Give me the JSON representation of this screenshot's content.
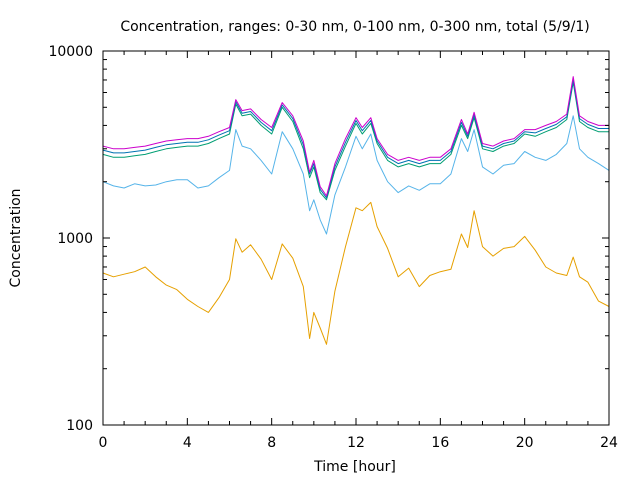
{
  "chart_data": {
    "type": "line",
    "title": "Concentration, ranges: 0-30 nm, 0-100 nm, 0-300 nm, total (5/9/1)",
    "xlabel": "Time [hour]",
    "ylabel": "Concentration",
    "xlim": [
      0,
      24
    ],
    "ylim": [
      100,
      10000
    ],
    "yscale": "log",
    "xticks": [
      0,
      4,
      8,
      12,
      16,
      20,
      24
    ],
    "yticks": [
      100,
      1000,
      10000
    ],
    "xtick_labels": [
      "0",
      "4",
      "8",
      "12",
      "16",
      "20",
      "24"
    ],
    "ytick_labels": [
      "100",
      "1000",
      "10000"
    ],
    "grid": false,
    "legend": "none",
    "series": [
      {
        "color": "#e6a000",
        "x": [
          0,
          0.5,
          1,
          1.5,
          2,
          2.5,
          3,
          3.5,
          4,
          4.5,
          5,
          5.5,
          6,
          6.3,
          6.6,
          7,
          7.5,
          8,
          8.5,
          9,
          9.5,
          9.8,
          10,
          10.3,
          10.6,
          11,
          11.5,
          12,
          12.3,
          12.7,
          13,
          13.5,
          14,
          14.5,
          15,
          15.5,
          16,
          16.5,
          17,
          17.3,
          17.6,
          18,
          18.5,
          19,
          19.5,
          20,
          20.5,
          21,
          21.5,
          22,
          22.3,
          22.6,
          23,
          23.5,
          24
        ],
        "y": [
          650,
          620,
          640,
          660,
          700,
          620,
          560,
          530,
          470,
          430,
          400,
          480,
          600,
          990,
          840,
          920,
          770,
          600,
          930,
          780,
          550,
          290,
          400,
          330,
          270,
          520,
          900,
          1450,
          1400,
          1550,
          1150,
          880,
          620,
          690,
          550,
          630,
          660,
          680,
          1050,
          890,
          1400,
          900,
          800,
          880,
          900,
          1020,
          860,
          700,
          650,
          630,
          790,
          620,
          580,
          460,
          430
        ]
      },
      {
        "color": "#56b4e9",
        "x": [
          0,
          0.5,
          1,
          1.5,
          2,
          2.5,
          3,
          3.5,
          4,
          4.5,
          5,
          5.5,
          6,
          6.3,
          6.6,
          7,
          7.5,
          8,
          8.5,
          9,
          9.5,
          9.8,
          10,
          10.3,
          10.6,
          11,
          11.5,
          12,
          12.3,
          12.7,
          13,
          13.5,
          14,
          14.5,
          15,
          15.5,
          16,
          16.5,
          17,
          17.3,
          17.6,
          18,
          18.5,
          19,
          19.5,
          20,
          20.5,
          21,
          21.5,
          22,
          22.3,
          22.6,
          23,
          23.5,
          24
        ],
        "y": [
          2000,
          1900,
          1850,
          1950,
          1900,
          1920,
          2000,
          2050,
          2050,
          1850,
          1900,
          2100,
          2300,
          3800,
          3100,
          3000,
          2600,
          2200,
          3700,
          3000,
          2200,
          1400,
          1600,
          1250,
          1050,
          1700,
          2400,
          3500,
          3000,
          3600,
          2600,
          2000,
          1750,
          1900,
          1800,
          1950,
          1950,
          2200,
          3400,
          2900,
          3800,
          2400,
          2200,
          2450,
          2500,
          2900,
          2700,
          2600,
          2800,
          3200,
          4500,
          3000,
          2700,
          2500,
          2300
        ]
      },
      {
        "color": "#009e73",
        "x": [
          0,
          0.5,
          1,
          1.5,
          2,
          2.5,
          3,
          3.5,
          4,
          4.5,
          5,
          5.5,
          6,
          6.3,
          6.6,
          7,
          7.5,
          8,
          8.5,
          9,
          9.5,
          9.8,
          10,
          10.3,
          10.6,
          11,
          11.5,
          12,
          12.3,
          12.7,
          13,
          13.5,
          14,
          14.5,
          15,
          15.5,
          16,
          16.5,
          17,
          17.3,
          17.6,
          18,
          18.5,
          19,
          19.5,
          20,
          20.5,
          21,
          21.5,
          22,
          22.3,
          22.6,
          23,
          23.5,
          24
        ],
        "y": [
          2800,
          2700,
          2700,
          2750,
          2800,
          2900,
          3000,
          3050,
          3100,
          3100,
          3200,
          3400,
          3600,
          5200,
          4500,
          4600,
          4000,
          3600,
          5000,
          4200,
          3000,
          2100,
          2400,
          1750,
          1600,
          2300,
          3100,
          4100,
          3600,
          4100,
          3200,
          2600,
          2400,
          2500,
          2400,
          2500,
          2500,
          2800,
          4000,
          3400,
          4400,
          3000,
          2900,
          3100,
          3200,
          3600,
          3500,
          3700,
          3900,
          4300,
          6800,
          4200,
          3900,
          3700,
          3700
        ]
      },
      {
        "color": "#0072b2",
        "x": [
          0,
          0.5,
          1,
          1.5,
          2,
          2.5,
          3,
          3.5,
          4,
          4.5,
          5,
          5.5,
          6,
          6.3,
          6.6,
          7,
          7.5,
          8,
          8.5,
          9,
          9.5,
          9.8,
          10,
          10.3,
          10.6,
          11,
          11.5,
          12,
          12.3,
          12.7,
          13,
          13.5,
          14,
          14.5,
          15,
          15.5,
          16,
          16.5,
          17,
          17.3,
          17.6,
          18,
          18.5,
          19,
          19.5,
          20,
          20.5,
          21,
          21.5,
          22,
          22.3,
          22.6,
          23,
          23.5,
          24
        ],
        "y": [
          2950,
          2850,
          2850,
          2900,
          2950,
          3050,
          3150,
          3200,
          3250,
          3250,
          3350,
          3550,
          3750,
          5350,
          4650,
          4750,
          4150,
          3750,
          5150,
          4350,
          3150,
          2200,
          2500,
          1820,
          1640,
          2400,
          3250,
          4250,
          3750,
          4250,
          3300,
          2700,
          2500,
          2600,
          2500,
          2600,
          2600,
          2900,
          4150,
          3500,
          4550,
          3100,
          3000,
          3200,
          3300,
          3700,
          3650,
          3850,
          4050,
          4450,
          7000,
          4350,
          4050,
          3850,
          3850
        ]
      },
      {
        "color": "#cc00cc",
        "x": [
          0,
          0.5,
          1,
          1.5,
          2,
          2.5,
          3,
          3.5,
          4,
          4.5,
          5,
          5.5,
          6,
          6.3,
          6.6,
          7,
          7.5,
          8,
          8.5,
          9,
          9.5,
          9.8,
          10,
          10.3,
          10.6,
          11,
          11.5,
          12,
          12.3,
          12.7,
          13,
          13.5,
          14,
          14.5,
          15,
          15.5,
          16,
          16.5,
          17,
          17.3,
          17.6,
          18,
          18.5,
          19,
          19.5,
          20,
          20.5,
          21,
          21.5,
          22,
          22.3,
          22.6,
          23,
          23.5,
          24
        ],
        "y": [
          3100,
          3000,
          3000,
          3050,
          3100,
          3200,
          3300,
          3350,
          3400,
          3400,
          3500,
          3700,
          3900,
          5500,
          4800,
          4900,
          4300,
          3900,
          5300,
          4500,
          3300,
          2250,
          2600,
          1880,
          1680,
          2500,
          3400,
          4400,
          3900,
          4400,
          3400,
          2800,
          2600,
          2700,
          2600,
          2700,
          2700,
          3000,
          4300,
          3600,
          4700,
          3200,
          3100,
          3300,
          3400,
          3800,
          3800,
          4000,
          4200,
          4600,
          7300,
          4500,
          4200,
          4000,
          4000
        ]
      }
    ]
  }
}
